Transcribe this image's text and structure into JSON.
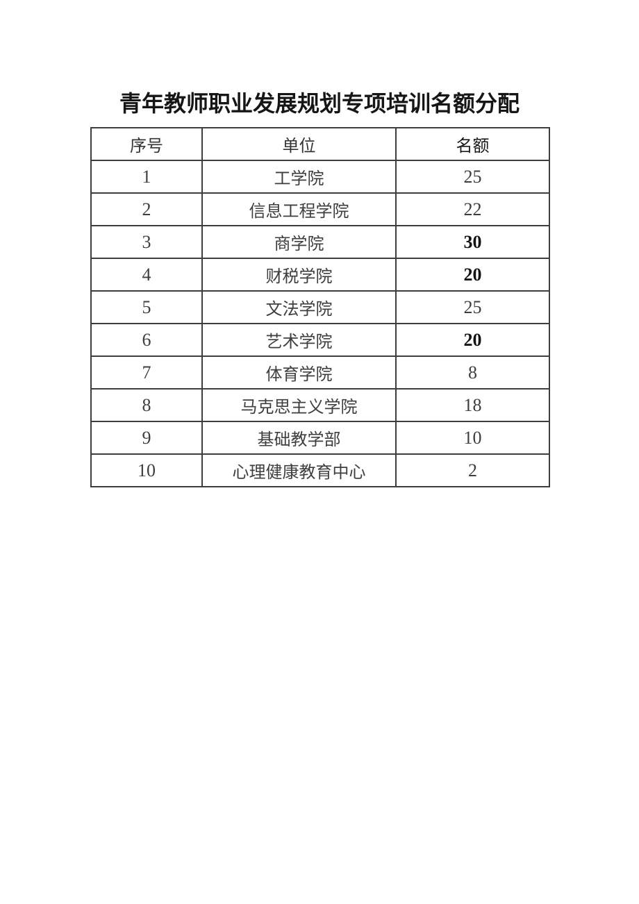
{
  "page": {
    "title": "青年教师职业发展规划专项培训名额分配"
  },
  "table": {
    "headers": {
      "no": "序号",
      "unit": "单位",
      "quota": "名额"
    },
    "rows": [
      {
        "no": "1",
        "unit": "工学院",
        "quota": "25",
        "bold": false
      },
      {
        "no": "2",
        "unit": "信息工程学院",
        "quota": "22",
        "bold": false
      },
      {
        "no": "3",
        "unit": "商学院",
        "quota": "30",
        "bold": true
      },
      {
        "no": "4",
        "unit": "财税学院",
        "quota": "20",
        "bold": true
      },
      {
        "no": "5",
        "unit": "文法学院",
        "quota": "25",
        "bold": false
      },
      {
        "no": "6",
        "unit": "艺术学院",
        "quota": "20",
        "bold": true
      },
      {
        "no": "7",
        "unit": "体育学院",
        "quota": "8",
        "bold": false
      },
      {
        "no": "8",
        "unit": "马克思主义学院",
        "quota": "18",
        "bold": false
      },
      {
        "no": "9",
        "unit": "基础教学部",
        "quota": "10",
        "bold": false
      },
      {
        "no": "10",
        "unit": "心理健康教育中心",
        "quota": "2",
        "bold": false
      }
    ]
  },
  "colors": {
    "page_background": "#ffffff",
    "table_border": "#3d3d3d",
    "body_text": "#3e3e3e",
    "title_text": "#161616"
  }
}
